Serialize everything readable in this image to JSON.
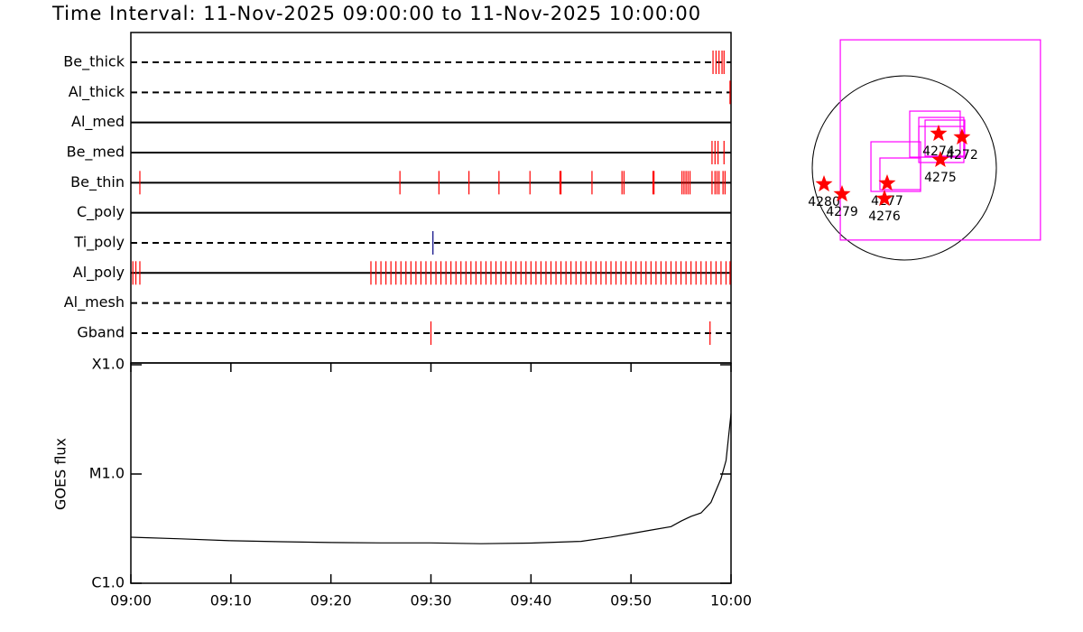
{
  "chart_data": [
    {
      "type": "timeline",
      "title": "Time Interval: 11-Nov-2025 09:00:00 to 11-Nov-2025 10:00:00",
      "xlim": [
        0,
        60
      ],
      "rows": [
        {
          "label": "Be_thick",
          "line": "dashed",
          "color": "#ff0000",
          "times": [
            58.2,
            58.5,
            58.8,
            59.1,
            59.3
          ]
        },
        {
          "label": "Al_thick",
          "line": "dashed",
          "color": "#ff0000",
          "times": [
            59.9
          ]
        },
        {
          "label": "Al_med",
          "line": "solid",
          "color": "#ff0000",
          "times": []
        },
        {
          "label": "Be_med",
          "line": "solid",
          "color": "#ff0000",
          "times": [
            58.1,
            58.4,
            58.7,
            59.3
          ]
        },
        {
          "label": "Be_thin",
          "line": "solid",
          "color": "#ff0000",
          "times": [
            0.9,
            26.9,
            30.8,
            33.8,
            36.8,
            39.9,
            42.9,
            43.0,
            46.1,
            49.1,
            49.3,
            52.2,
            52.3,
            55.1,
            55.3,
            55.5,
            55.7,
            55.9,
            58.1,
            58.4,
            58.6,
            58.8,
            59.2,
            59.4
          ]
        },
        {
          "label": "C_poly",
          "line": "solid",
          "color": "#ff0000",
          "times": []
        },
        {
          "label": "Ti_poly",
          "line": "dashed",
          "color": "#000080",
          "times": [
            30.2
          ]
        },
        {
          "label": "Al_poly",
          "line": "solid",
          "color": "#ff0000",
          "times": [
            0.2,
            0.5,
            0.9,
            24,
            24.5,
            25,
            25.5,
            26,
            26.5,
            27,
            27.5,
            28,
            28.5,
            29,
            29.5,
            30,
            30.5,
            31,
            31.5,
            32,
            32.5,
            33,
            33.5,
            34,
            34.5,
            35,
            35.5,
            36,
            36.5,
            37,
            37.5,
            38,
            38.5,
            39,
            39.5,
            40,
            40.5,
            41,
            41.5,
            42,
            42.5,
            43,
            43.5,
            44,
            44.5,
            45,
            45.5,
            46,
            46.5,
            47,
            47.5,
            48,
            48.5,
            49,
            49.5,
            50,
            50.5,
            51,
            51.5,
            52,
            52.5,
            53,
            53.5,
            54,
            54.5,
            55,
            55.5,
            56,
            56.5,
            57,
            57.5,
            58,
            58.5,
            59,
            59.5,
            59.9
          ]
        },
        {
          "label": "Al_mesh",
          "line": "dashed",
          "color": "#ff0000",
          "times": []
        },
        {
          "label": "Gband",
          "line": "dashed",
          "color": "#ff0000",
          "times": [
            30.0,
            57.9
          ]
        }
      ]
    },
    {
      "type": "line",
      "ylabel": "GOES flux",
      "log_y": true,
      "color": "#000000",
      "xlim": [
        0,
        60
      ],
      "xticks": [
        {
          "value": 0,
          "label": "09:00"
        },
        {
          "value": 10,
          "label": "09:10"
        },
        {
          "value": 20,
          "label": "09:20"
        },
        {
          "value": 30,
          "label": "09:30"
        },
        {
          "value": 40,
          "label": "09:40"
        },
        {
          "value": 50,
          "label": "09:50"
        },
        {
          "value": 60,
          "label": "10:00"
        }
      ],
      "ylim": [
        1e-06,
        0.0001
      ],
      "yticks": [
        {
          "value": 1e-06,
          "label": "C1.0"
        },
        {
          "value": 1e-05,
          "label": "M1.0"
        },
        {
          "value": 0.0001,
          "label": "X1.0"
        }
      ],
      "x": [
        0,
        5,
        10,
        15,
        20,
        25,
        30,
        35,
        40,
        45,
        48,
        50,
        52,
        54,
        55,
        56,
        57,
        58,
        59,
        59.5,
        60
      ],
      "values": [
        2.64e-06,
        2.55e-06,
        2.45e-06,
        2.4e-06,
        2.36e-06,
        2.34e-06,
        2.34e-06,
        2.3e-06,
        2.33e-06,
        2.42e-06,
        2.65e-06,
        2.85e-06,
        3.07e-06,
        3.3e-06,
        3.7e-06,
        4.1e-06,
        4.4e-06,
        5.5e-06,
        9.1e-06,
        1.33e-05,
        3.58e-05
      ]
    },
    {
      "type": "map",
      "sun_radius": 970,
      "fov_color": "#ff00ff",
      "region_color": "#ff0000",
      "fovs": [
        {
          "x": 380,
          "y": 295,
          "w": 2109,
          "h": 2109
        },
        {
          "x": 323,
          "y": 356,
          "w": 532,
          "h": 485
        },
        {
          "x": 390,
          "y": 323,
          "w": 475,
          "h": 418
        },
        {
          "x": 428,
          "y": 314,
          "w": 418,
          "h": 380
        },
        {
          "x": 390,
          "y": 247,
          "w": 475,
          "h": 380
        },
        {
          "x": -90,
          "y": 14,
          "w": 523,
          "h": 523
        },
        {
          "x": -43,
          "y": -62,
          "w": 428,
          "h": 333
        }
      ],
      "regions": [
        {
          "label": "4280",
          "x": -846,
          "y": -171
        },
        {
          "label": "4279",
          "x": -656,
          "y": -276
        },
        {
          "label": "4277",
          "x": -181,
          "y": -162
        },
        {
          "label": "4276",
          "x": -209,
          "y": -323
        },
        {
          "label": "4274",
          "x": 361,
          "y": 361
        },
        {
          "label": "4272",
          "x": 608,
          "y": 323
        },
        {
          "label": "4275",
          "x": 380,
          "y": 86
        }
      ]
    }
  ]
}
